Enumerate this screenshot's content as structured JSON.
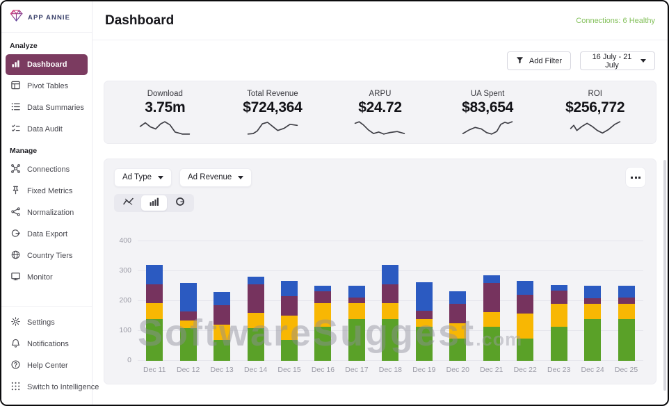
{
  "app": {
    "brand": "APP ANNIE",
    "page_title": "Dashboard",
    "connections_status": "Connections: 6 Healthy"
  },
  "sidebar": {
    "sections": [
      {
        "label": "Analyze",
        "items": [
          {
            "label": "Dashboard",
            "icon": "dashboard-icon",
            "active": true
          },
          {
            "label": "Pivot Tables",
            "icon": "pivot-tables-icon",
            "active": false
          },
          {
            "label": "Data Summaries",
            "icon": "data-summaries-icon",
            "active": false
          },
          {
            "label": "Data Audit",
            "icon": "data-audit-icon",
            "active": false
          }
        ]
      },
      {
        "label": "Manage",
        "items": [
          {
            "label": "Connections",
            "icon": "connections-icon",
            "active": false
          },
          {
            "label": "Fixed Metrics",
            "icon": "fixed-metrics-icon",
            "active": false
          },
          {
            "label": "Normalization",
            "icon": "normalization-icon",
            "active": false
          },
          {
            "label": "Data Export",
            "icon": "data-export-icon",
            "active": false
          },
          {
            "label": "Country Tiers",
            "icon": "country-tiers-icon",
            "active": false
          },
          {
            "label": "Monitor",
            "icon": "monitor-icon",
            "active": false
          }
        ]
      }
    ],
    "footer_items": [
      {
        "label": "Settings",
        "icon": "gear-icon"
      },
      {
        "label": "Notifications",
        "icon": "bell-icon"
      },
      {
        "label": "Help Center",
        "icon": "help-icon"
      },
      {
        "label": "Switch to Intelligence",
        "icon": "grid-icon"
      }
    ]
  },
  "toolbar": {
    "add_filter_label": "Add Filter",
    "date_range": "16 July - 21 July"
  },
  "kpis": [
    {
      "label": "Download",
      "value": "3.75m",
      "spark": "2,16 12,9 22,17 32,21 42,11 50,7 60,13 70,27 84,31 98,31"
    },
    {
      "label": "Total Revenue",
      "value": "$724,364",
      "spark": "2,31 12,30 20,25 30,11 40,8 50,16 60,24 72,20 84,12 98,14"
    },
    {
      "label": "ARPU",
      "value": "$24.72",
      "spark": "2,10 10,7 18,13 28,23 38,30 48,27 58,31 70,28 84,26 98,30"
    },
    {
      "label": "UA Spent",
      "value": "$83,654",
      "spark": "2,30 14,23 26,18 38,21 48,28 58,31 68,26 76,12 84,8 90,10 98,7"
    },
    {
      "label": "ROI",
      "value": "$256,772",
      "spark": "2,20 8,14 14,24 24,16 34,10 44,16 54,24 64,29 76,22 88,12 98,7"
    }
  ],
  "chart_panel": {
    "filters": [
      {
        "label": "Ad Type"
      },
      {
        "label": "Ad Revenue"
      }
    ],
    "view_modes": [
      {
        "name": "line",
        "icon": "line-chart-icon",
        "active": false
      },
      {
        "name": "bar",
        "icon": "bar-chart-icon",
        "active": true
      },
      {
        "name": "donut",
        "icon": "donut-chart-icon",
        "active": false
      }
    ]
  },
  "watermark": {
    "text": "SoftwareSuggest",
    "suffix": ".com"
  },
  "chart_data": {
    "type": "bar",
    "stacked": true,
    "categories": [
      "Dec 11",
      "Dec 12",
      "Dec 13",
      "Dec 14",
      "Dec 15",
      "Dec 16",
      "Dec 17",
      "Dec 18",
      "Dec 19",
      "Dec 20",
      "Dec 21",
      "Dec 22",
      "Dec 23",
      "Dec 24",
      "Dec 25"
    ],
    "series": [
      {
        "name": "green-segment",
        "color": "#5aa128",
        "values": [
          140,
          110,
          70,
          110,
          70,
          115,
          140,
          140,
          114,
          75,
          114,
          74,
          115,
          140,
          140
        ]
      },
      {
        "name": "yellow-segment",
        "color": "#f8b703",
        "values": [
          53,
          25,
          52,
          51,
          82,
          78,
          53,
          52,
          26,
          50,
          49,
          85,
          75,
          50,
          50
        ]
      },
      {
        "name": "purple-segment",
        "color": "#76335e",
        "values": [
          64,
          30,
          63,
          96,
          65,
          39,
          19,
          64,
          28,
          65,
          97,
          63,
          44,
          20,
          22
        ]
      },
      {
        "name": "blue-segment",
        "color": "#2b5ac1",
        "values": [
          63,
          95,
          45,
          25,
          51,
          19,
          39,
          66,
          94,
          42,
          25,
          46,
          20,
          42,
          40
        ]
      }
    ],
    "title": "",
    "xlabel": "",
    "ylabel": "",
    "ylim": [
      0,
      400
    ],
    "yticks": [
      0,
      100,
      200,
      300,
      400
    ],
    "grid": true,
    "legend": false
  },
  "colors": {
    "accent_plum": "#7b3b60",
    "status_green": "#84c05b",
    "panel_gray": "#f3f3f6",
    "axis_gray": "#9b9ba6"
  }
}
